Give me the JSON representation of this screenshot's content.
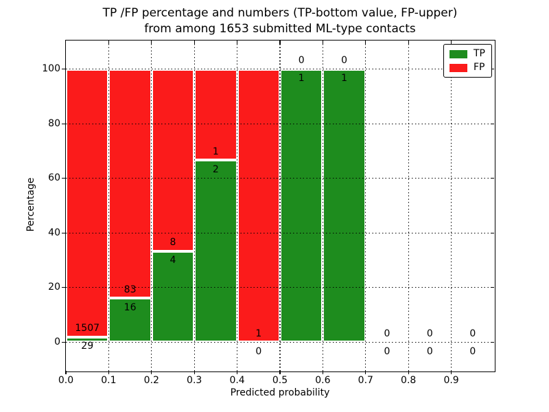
{
  "chart_data": {
    "type": "bar",
    "stacked": true,
    "title": "TP /FP percentage and numbers (TP-bottom value, FP-upper) from among 1653 submitted ML-type contacts",
    "title_line1": "TP /FP percentage and numbers (TP-bottom value, FP-upper)",
    "title_line2": "from among 1653 submitted ML-type contacts",
    "xlabel": "Predicted probability",
    "ylabel": "Percentage",
    "xlim": [
      0.0,
      1.0
    ],
    "ylim": [
      -10.5,
      110.5
    ],
    "xticks": [
      "0.0",
      "0.1",
      "0.2",
      "0.3",
      "0.4",
      "0.5",
      "0.6",
      "0.7",
      "0.8",
      "0.9"
    ],
    "yticks": [
      "0",
      "20",
      "40",
      "60",
      "80",
      "100"
    ],
    "grid": "dotted",
    "grid_color": "#000000",
    "bar_width": 0.1,
    "total_contacts": 1653,
    "colors": {
      "tp": "#1e8c1e",
      "fp": "#fb1b1b"
    },
    "legend": {
      "position": "upper right",
      "items": [
        {
          "label": "TP",
          "color": "#1e8c1e"
        },
        {
          "label": "FP",
          "color": "#fb1b1b"
        }
      ]
    },
    "bins": [
      {
        "x0": 0.0,
        "x1": 0.1,
        "tp": 29,
        "fp": 1507,
        "tp_pct": 1.888,
        "fp_pct": 98.112
      },
      {
        "x0": 0.1,
        "x1": 0.2,
        "tp": 16,
        "fp": 83,
        "tp_pct": 16.162,
        "fp_pct": 83.838
      },
      {
        "x0": 0.2,
        "x1": 0.3,
        "tp": 4,
        "fp": 8,
        "tp_pct": 33.333,
        "fp_pct": 66.667
      },
      {
        "x0": 0.3,
        "x1": 0.4,
        "tp": 2,
        "fp": 1,
        "tp_pct": 66.667,
        "fp_pct": 33.333
      },
      {
        "x0": 0.4,
        "x1": 0.5,
        "tp": 0,
        "fp": 1,
        "tp_pct": 0,
        "fp_pct": 100
      },
      {
        "x0": 0.5,
        "x1": 0.6,
        "tp": 1,
        "fp": 0,
        "tp_pct": 100,
        "fp_pct": 0
      },
      {
        "x0": 0.6,
        "x1": 0.7,
        "tp": 1,
        "fp": 0,
        "tp_pct": 100,
        "fp_pct": 0
      },
      {
        "x0": 0.7,
        "x1": 0.8,
        "tp": 0,
        "fp": 0,
        "tp_pct": 0,
        "fp_pct": 0
      },
      {
        "x0": 0.8,
        "x1": 0.9,
        "tp": 0,
        "fp": 0,
        "tp_pct": 0,
        "fp_pct": 0
      },
      {
        "x0": 0.9,
        "x1": 1.0,
        "tp": 0,
        "fp": 0,
        "tp_pct": 0,
        "fp_pct": 0
      }
    ]
  }
}
